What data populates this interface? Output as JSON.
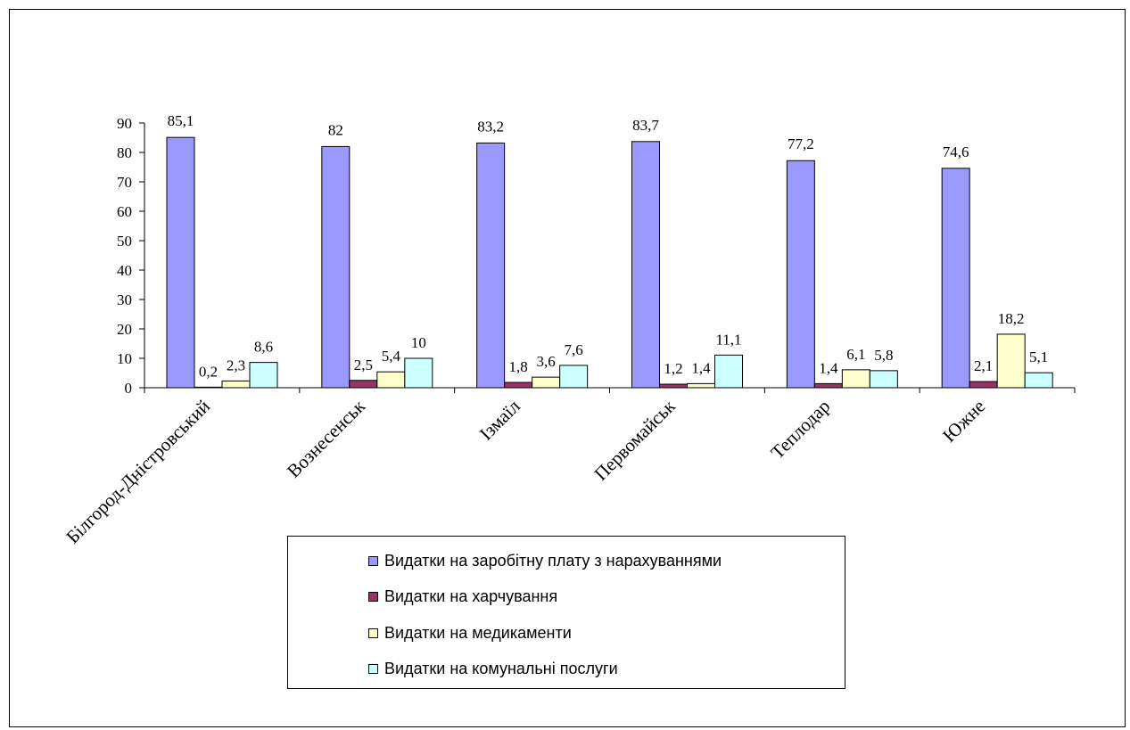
{
  "chart_data": {
    "type": "bar",
    "categories": [
      "Білгород-Дністровський",
      "Вознесенськ",
      "Ізмаїл",
      "Первомайськ",
      "Теплодар",
      "Южне"
    ],
    "series": [
      {
        "name": "Видатки на заробітну плату з нарахуваннями",
        "color": "#9999ff",
        "values": [
          85.1,
          82,
          83.2,
          83.7,
          77.2,
          74.6
        ],
        "labels": [
          "85,1",
          "82",
          "83,2",
          "83,7",
          "77,2",
          "74,6"
        ]
      },
      {
        "name": "Видатки на харчування",
        "color": "#993366",
        "values": [
          0.2,
          2.5,
          1.8,
          1.2,
          1.4,
          2.1
        ],
        "labels": [
          "0,2",
          "2,5",
          "1,8",
          "1,2",
          "1,4",
          "2,1"
        ]
      },
      {
        "name": "Видатки на медикаменти",
        "color": "#ffffcc",
        "values": [
          2.3,
          5.4,
          3.6,
          1.4,
          6.1,
          18.2
        ],
        "labels": [
          "2,3",
          "5,4",
          "3,6",
          "1,4",
          "6,1",
          "18,2"
        ]
      },
      {
        "name": "Видатки на комунальні послуги",
        "color": "#ccffff",
        "values": [
          8.6,
          10,
          7.6,
          11.1,
          5.8,
          5.1
        ],
        "labels": [
          "8,6",
          "10",
          "7,6",
          "11,1",
          "5,8",
          "5,1"
        ]
      }
    ],
    "ylim": [
      0,
      90
    ],
    "yticks": [
      0,
      10,
      20,
      30,
      40,
      50,
      60,
      70,
      80,
      90
    ],
    "grid": false,
    "legend_position": "bottom-center",
    "title": "",
    "xlabel": "",
    "ylabel": ""
  }
}
